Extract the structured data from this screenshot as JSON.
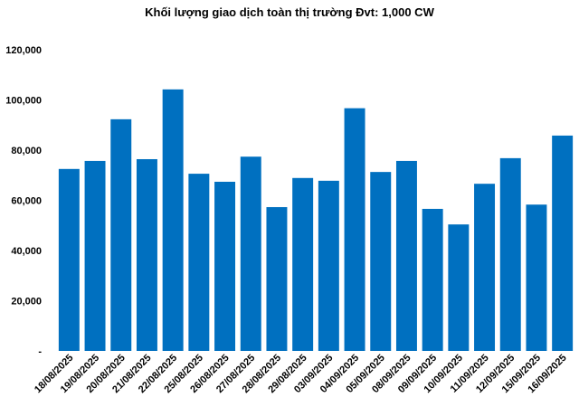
{
  "chart_data": {
    "type": "bar",
    "title": "Khối lượng giao dịch toàn thị trường Đvt: 1,000 CW",
    "xlabel": "",
    "ylabel": "",
    "ylim": [
      0,
      120000
    ],
    "yticks": [
      0,
      20000,
      40000,
      60000,
      80000,
      100000,
      120000
    ],
    "ytick_labels": [
      "-",
      "20,000",
      "40,000",
      "60,000",
      "80,000",
      "100,000",
      "120,000"
    ],
    "grid": false,
    "legend": "none",
    "bar_color": "#0070c0",
    "categories": [
      "18/08/2025",
      "19/08/2025",
      "20/08/2025",
      "21/08/2025",
      "22/08/2025",
      "25/08/2025",
      "26/08/2025",
      "27/08/2025",
      "28/08/2025",
      "29/08/2025",
      "03/09/2025",
      "04/09/2025",
      "05/09/2025",
      "08/09/2025",
      "09/09/2025",
      "10/09/2025",
      "11/09/2025",
      "12/09/2025",
      "15/09/2025",
      "16/09/2025"
    ],
    "values": [
      72500,
      75700,
      92300,
      76400,
      104200,
      70600,
      67400,
      77400,
      57300,
      68900,
      67800,
      96700,
      71300,
      75700,
      56600,
      50400,
      66600,
      76800,
      58300,
      85800
    ]
  }
}
